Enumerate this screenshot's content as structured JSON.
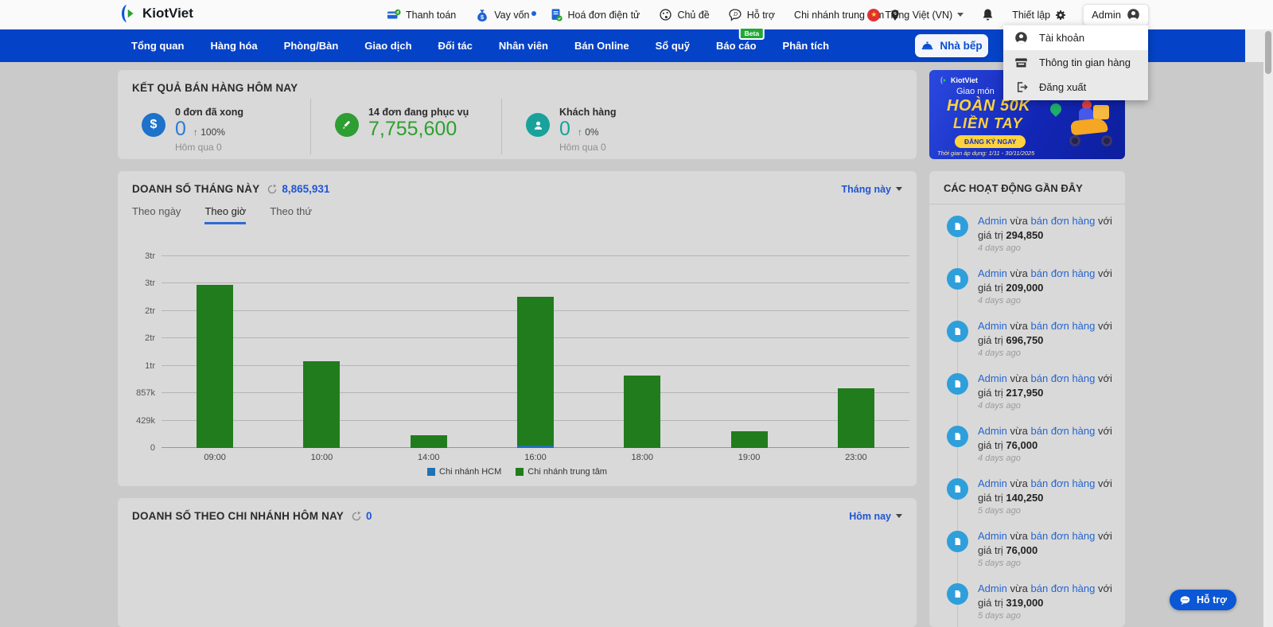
{
  "topbar": {
    "brand": "KiotViet",
    "items": [
      {
        "label": "Thanh toán"
      },
      {
        "label": "Vay vốn"
      },
      {
        "label": "Hoá đơn điện tử"
      },
      {
        "label": "Chủ đề"
      },
      {
        "label": "Hỗ trợ",
        "badge": "Beta"
      },
      {
        "label": "Chi nhánh trung tâm"
      },
      {
        "label": "Tiếng Việt (VN)"
      }
    ],
    "settings_label": "Thiết lập",
    "user_label": "Admin"
  },
  "navbar": {
    "items": [
      "Tổng quan",
      "Hàng hóa",
      "Phòng/Bàn",
      "Giao dịch",
      "Đối tác",
      "Nhân viên",
      "Bán Online",
      "Sổ quỹ",
      "Báo cáo",
      "Phân tích"
    ],
    "kitchen_button": "Nhà bếp"
  },
  "user_menu": {
    "items": [
      "Tài khoản",
      "Thông tin gian hàng",
      "Đăng xuất"
    ]
  },
  "sales_today": {
    "title": "KẾT QUẢ BÁN HÀNG HÔM NAY",
    "stats": [
      {
        "label": "0 đơn đã xong",
        "value": "0",
        "delta": "100%",
        "sub": "Hôm qua 0"
      },
      {
        "label": "14 đơn đang phục vụ",
        "value": "7,755,600"
      },
      {
        "label": "Khách hàng",
        "value": "0",
        "delta": "0%",
        "sub": "Hôm qua 0"
      }
    ]
  },
  "month_sales": {
    "title": "DOANH SỐ THÁNG NÀY",
    "total": "8,865,931",
    "range_label": "Tháng này",
    "tabs": [
      "Theo ngày",
      "Theo giờ",
      "Theo thứ"
    ],
    "active_tab": "Theo giờ"
  },
  "chart_data": {
    "type": "bar",
    "stacked": true,
    "title": "DOANH SỐ THÁNG NÀY (Theo giờ)",
    "categories": [
      "09:00",
      "10:00",
      "14:00",
      "16:00",
      "18:00",
      "19:00",
      "23:00"
    ],
    "series": [
      {
        "name": "Chi nhánh HCM",
        "color": "#1f72b5",
        "values": [
          0,
          0,
          0,
          38000,
          0,
          0,
          0
        ]
      },
      {
        "name": "Chi nhánh trung tâm",
        "color": "#217c1d",
        "values": [
          2550000,
          1360000,
          195000,
          2330000,
          1130000,
          265000,
          940000
        ]
      }
    ],
    "ylim": [
      0,
      3000000
    ],
    "ytick_labels_bottom_to_top": [
      "0",
      "429k",
      "857k",
      "1tr",
      "2tr",
      "2tr",
      "3tr",
      "3tr"
    ],
    "grid": true,
    "legend_position": "bottom"
  },
  "branch_sales": {
    "title": "DOANH SỐ THEO CHI NHÁNH HÔM NAY",
    "total": "0",
    "range_label": "Hôm nay"
  },
  "banner": {
    "brand": "KiotViet",
    "line1": "Giao món",
    "headline1": "HOÀN 50K",
    "headline2": "LIỀN TAY",
    "cta": "ĐĂNG KÝ NGAY",
    "note": "Thời gian áp dụng: 1/11 - 30/11/2025"
  },
  "activities": {
    "title": "CÁC HOẠT ĐỘNG GẦN ĐÂY",
    "items": [
      {
        "user": "Admin",
        "pre": "vừa",
        "link": "bán đơn hàng",
        "post": "với giá trị",
        "value": "294,850",
        "time": "4 days ago"
      },
      {
        "user": "Admin",
        "pre": "vừa",
        "link": "bán đơn hàng",
        "post": "với giá trị",
        "value": "209,000",
        "time": "4 days ago"
      },
      {
        "user": "Admin",
        "pre": "vừa",
        "link": "bán đơn hàng",
        "post": "với giá trị",
        "value": "696,750",
        "time": "4 days ago"
      },
      {
        "user": "Admin",
        "pre": "vừa",
        "link": "bán đơn hàng",
        "post": "với giá trị",
        "value": "217,950",
        "time": "4 days ago"
      },
      {
        "user": "Admin",
        "pre": "vừa",
        "link": "bán đơn hàng",
        "post": "với giá trị",
        "value": "76,000",
        "time": "4 days ago"
      },
      {
        "user": "Admin",
        "pre": "vừa",
        "link": "bán đơn hàng",
        "post": "với giá trị",
        "value": "140,250",
        "time": "5 days ago"
      },
      {
        "user": "Admin",
        "pre": "vừa",
        "link": "bán đơn hàng",
        "post": "với giá trị",
        "value": "76,000",
        "time": "5 days ago"
      },
      {
        "user": "Admin",
        "pre": "vừa",
        "link": "bán đơn hàng",
        "post": "với giá trị",
        "value": "319,000",
        "time": "5 days ago"
      }
    ]
  },
  "support_button": "Hỗ trợ",
  "colors": {
    "navbar_blue": "#0443c8",
    "link_blue": "#2565d0",
    "bar_green": "#217c1d",
    "bar_blue": "#1f72b5",
    "stat_blue": "#2b7bd4",
    "stat_green": "#2da02d",
    "teal": "#18a29b",
    "banner_yellow": "#ffd23e"
  }
}
